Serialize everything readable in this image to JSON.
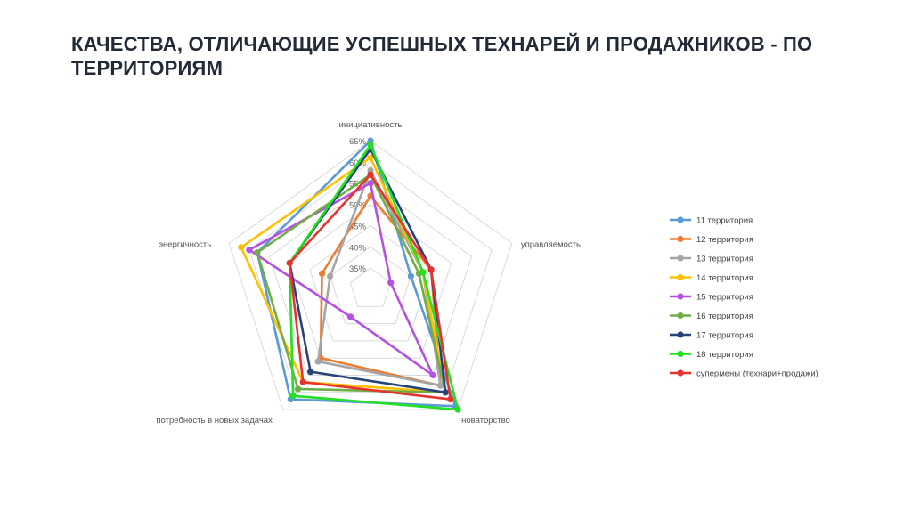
{
  "slide": {
    "title": "КАЧЕСТВА, ОТЛИЧАЮЩИЕ УСПЕШНЫХ ТЕХНАРЕЙ И ПРОДАЖНИКОВ - ПО ТЕРРИТОРИЯМ"
  },
  "chart_data": {
    "type": "radar",
    "title": "",
    "axes": [
      "инициативность",
      "управляемость",
      "новаторство",
      "потребность в новых задачах",
      "энергичность"
    ],
    "ticks": [
      "35%",
      "40%",
      "45%",
      "50%",
      "55%",
      "60%",
      "65%"
    ],
    "rlim": [
      30,
      65
    ],
    "grid": true,
    "legend_position": "right",
    "series": [
      {
        "name": "11 территория",
        "color": "#5b9bd5",
        "values": [
          65,
          40,
          64,
          62,
          58
        ]
      },
      {
        "name": "12 территория",
        "color": "#ed7d31",
        "values": [
          52,
          45,
          58,
          50,
          42
        ]
      },
      {
        "name": "13 территория",
        "color": "#a5a5a5",
        "values": [
          58,
          43,
          58,
          51,
          40
        ]
      },
      {
        "name": "14 территория",
        "color": "#ffc000",
        "values": [
          61,
          43,
          60,
          57,
          62
        ]
      },
      {
        "name": "15 территория",
        "color": "#b451e0",
        "values": [
          55,
          35,
          55,
          38,
          60
        ]
      },
      {
        "name": "16 территория",
        "color": "#70ad47",
        "values": [
          57,
          42,
          60,
          59,
          58
        ]
      },
      {
        "name": "17 территория",
        "color": "#264478",
        "values": [
          63,
          45,
          60,
          54,
          50
        ]
      },
      {
        "name": "18 территория",
        "color": "#22e022",
        "values": [
          64,
          43,
          65,
          61,
          50
        ]
      },
      {
        "name": "супермены (технари+продажи)",
        "color": "#e8322e",
        "values": [
          57,
          45,
          62,
          57,
          50
        ]
      }
    ]
  }
}
